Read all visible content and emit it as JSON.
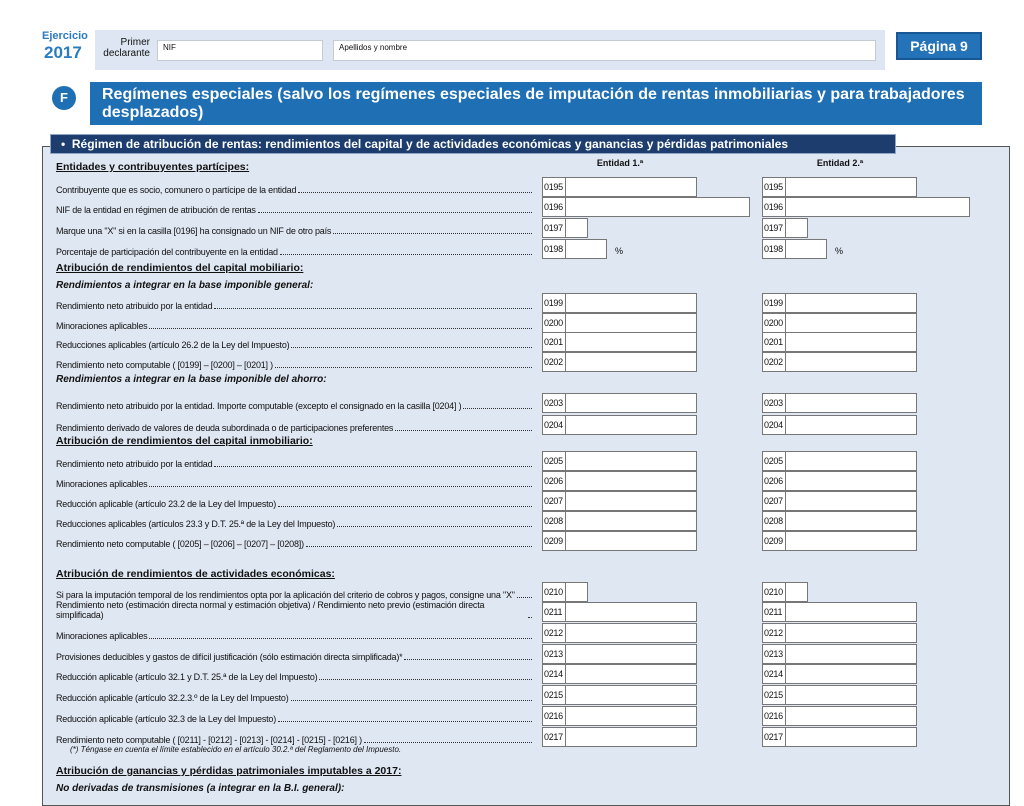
{
  "header": {
    "ejercicio_label": "Ejercicio",
    "year": "2017",
    "declarante_label": "Primer declarante",
    "nif_label": "NIF",
    "nombre_label": "Apellidos y nombre",
    "page": "Página 9"
  },
  "section": {
    "letter": "F",
    "title": "Regímenes especiales (salvo los regímenes especiales de imputación de rentas inmobiliarias y para trabajadores desplazados)",
    "subtitle": "Régimen de atribución de rentas: rendimientos del capital y de actividades económicas y ganancias y pérdidas patrimoniales"
  },
  "columns": [
    "Entidad 1.ª",
    "Entidad 2.ª"
  ],
  "items": [
    {
      "kind": "heading",
      "text": "Entidades y contribuyentes partícipes:"
    },
    {
      "kind": "row",
      "label": "Contribuyente que es socio, comunero o partícipe de la entidad",
      "code": "0195",
      "field": "amount"
    },
    {
      "kind": "row",
      "label": "NIF de la entidad en régimen de atribución de rentas",
      "code": "0196",
      "field": "nif"
    },
    {
      "kind": "row",
      "label": "Marque una \"X\" si en la casilla [0196] ha consignado un NIF de otro país",
      "code": "0197",
      "field": "check"
    },
    {
      "kind": "row",
      "label": "Porcentaje de participación del contribuyente en la entidad",
      "code": "0198",
      "field": "percent",
      "suffix": "%"
    },
    {
      "kind": "heading",
      "text": "Atribución de rendimientos del capital mobiliario:"
    },
    {
      "kind": "subheading",
      "text": "Rendimientos a integrar en la base imponible general:"
    },
    {
      "kind": "row",
      "label": "Rendimiento neto atribuido por la entidad",
      "code": "0199",
      "field": "amount"
    },
    {
      "kind": "row",
      "label": "Minoraciones aplicables",
      "code": "0200",
      "field": "amount"
    },
    {
      "kind": "row",
      "label": "Reducciones aplicables (artículo 26.2 de la Ley del Impuesto)",
      "code": "0201",
      "field": "amount"
    },
    {
      "kind": "row",
      "label": "Rendimiento neto computable ( [0199] – [0200] – [0201] )",
      "code": "0202",
      "field": "amount"
    },
    {
      "kind": "subheading",
      "text": "Rendimientos a integrar en la base imponible del ahorro:"
    },
    {
      "kind": "row",
      "label": "Rendimiento neto atribuido por la entidad. Importe computable (excepto el consignado en la casilla [0204] )",
      "code": "0203",
      "field": "amount"
    },
    {
      "kind": "row",
      "label": "Rendimiento derivado de valores de deuda subordinada o de participaciones preferentes",
      "code": "0204",
      "field": "amount"
    },
    {
      "kind": "heading",
      "text": "Atribución de rendimientos del capital inmobiliario:"
    },
    {
      "kind": "row",
      "label": "Rendimiento neto atribuido por la entidad",
      "code": "0205",
      "field": "amount"
    },
    {
      "kind": "row",
      "label": "Minoraciones aplicables",
      "code": "0206",
      "field": "amount"
    },
    {
      "kind": "row",
      "label": "Reducción aplicable (artículo 23.2 de la Ley del Impuesto)",
      "code": "0207",
      "field": "amount"
    },
    {
      "kind": "row",
      "label": "Reducciones aplicables (artículos 23.3 y D.T. 25.ª de la Ley del Impuesto)",
      "code": "0208",
      "field": "amount"
    },
    {
      "kind": "row",
      "label": "Rendimiento neto computable ( [0205] – [0206] – [0207] – [0208])",
      "code": "0209",
      "field": "amount"
    },
    {
      "kind": "heading",
      "text": "Atribución de rendimientos de actividades económicas:"
    },
    {
      "kind": "row",
      "label": "Si para la imputación temporal de los rendimientos opta por la aplicación del criterio de cobros y pagos, consigne una \"X\"",
      "code": "0210",
      "field": "check"
    },
    {
      "kind": "row",
      "label": "Rendimiento neto (estimación directa normal y estimación objetiva) / Rendimiento neto previo (estimación directa simplificada)",
      "code": "0211",
      "field": "amount"
    },
    {
      "kind": "row",
      "label": "Minoraciones aplicables",
      "code": "0212",
      "field": "amount"
    },
    {
      "kind": "row",
      "label": "Provisiones deducibles y gastos de difícil justificación (sólo estimación directa simplificada)*",
      "code": "0213",
      "field": "amount"
    },
    {
      "kind": "row",
      "label": "Reducción aplicable (artículo 32.1 y D.T. 25.ª de la Ley del Impuesto)",
      "code": "0214",
      "field": "amount"
    },
    {
      "kind": "row",
      "label": "Reducción aplicable (artículo 32.2.3.º de la Ley del Impuesto)",
      "code": "0215",
      "field": "amount"
    },
    {
      "kind": "row",
      "label": "Reducción aplicable (artículo 32.3 de la Ley del Impuesto)",
      "code": "0216",
      "field": "amount"
    },
    {
      "kind": "row",
      "label": "Rendimiento neto computable ( [0211] - [0212] - [0213] - [0214] - [0215] - [0216] )",
      "code": "0217",
      "field": "amount"
    },
    {
      "kind": "note",
      "text": "(*)   Téngase en cuenta el límite establecido en el artículo 30.2.ª del Reglamento del Impuesto."
    },
    {
      "kind": "heading",
      "text": "Atribución de ganancias y pérdidas patrimoniales imputables a 2017:"
    },
    {
      "kind": "subheading",
      "text": "No derivadas de transmisiones (a integrar en la B.I. general):"
    }
  ]
}
